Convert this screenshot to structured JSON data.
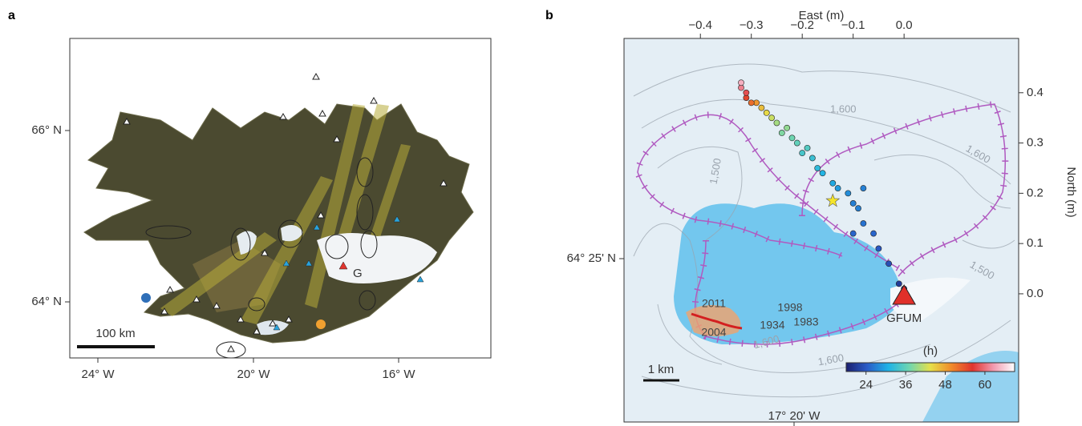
{
  "panel_a": {
    "label": "a",
    "x_labels": [
      "24° W",
      "20° W",
      "16° W"
    ],
    "y_labels": [
      "66° N",
      "64° N"
    ],
    "scale_bar": "100 km",
    "site_label": "G"
  },
  "chart_data": {
    "type": "scatter",
    "label": "b",
    "xlabel": "East (m)",
    "ylabel": "North (m)",
    "lat_label": "64° 25' N",
    "lon_label": "17° 20' W",
    "xlim": [
      -0.55,
      0.225
    ],
    "ylim": [
      -0.255,
      0.508
    ],
    "xticks": [
      {
        "value": -0.4,
        "label": "−0.4"
      },
      {
        "value": -0.3,
        "label": "−0.3"
      },
      {
        "value": -0.2,
        "label": "−0.2"
      },
      {
        "value": -0.1,
        "label": "−0.1"
      },
      {
        "value": 0,
        "label": "0.0"
      }
    ],
    "yticks": [
      {
        "value": 0,
        "label": "0.0"
      },
      0.1,
      0.2,
      0.3,
      0.4
    ],
    "x": [
      0.0,
      -0.01,
      0.0,
      -0.03,
      -0.05,
      -0.06,
      -0.08,
      -0.09,
      -0.1,
      -0.11,
      -0.13,
      -0.14,
      -0.16,
      -0.17,
      -0.18,
      -0.2,
      -0.19,
      -0.21,
      -0.22,
      -0.24,
      -0.23,
      -0.25,
      -0.26,
      -0.27,
      -0.28,
      -0.29,
      -0.3,
      -0.31,
      -0.31,
      -0.32,
      -0.32,
      -0.08,
      -0.1
    ],
    "y": [
      0.01,
      0.02,
      0.0,
      0.06,
      0.09,
      0.12,
      0.14,
      0.17,
      0.18,
      0.2,
      0.21,
      0.22,
      0.24,
      0.25,
      0.27,
      0.28,
      0.29,
      0.3,
      0.31,
      0.32,
      0.33,
      0.34,
      0.35,
      0.36,
      0.37,
      0.38,
      0.38,
      0.39,
      0.4,
      0.41,
      0.42,
      0.21,
      0.12
    ],
    "values": [
      20,
      21,
      20,
      23,
      24,
      25,
      26,
      27,
      27,
      28,
      29,
      30,
      31,
      32,
      33,
      34,
      35,
      36,
      37,
      38,
      39,
      40,
      42,
      44,
      46,
      49,
      52,
      55,
      58,
      61,
      64,
      27,
      25
    ],
    "colormap": [
      "#1b1f6e",
      "#2a5cc8",
      "#1fb3e6",
      "#6fd6b0",
      "#e6e04a",
      "#f08a2a",
      "#e0342e",
      "#f29ab0",
      "#ffffff"
    ],
    "clim": [
      18,
      69
    ],
    "cticks": [
      24,
      36,
      48,
      60
    ],
    "colorbar_label": "(h)",
    "star": {
      "x": -0.14,
      "y": 0.185
    },
    "station": {
      "name": "GFUM",
      "x": 0,
      "y": -0.005
    },
    "contour_labels": [
      "1,600",
      "1,500",
      "1,600",
      "1,500",
      "1,600",
      "1,600"
    ],
    "years": [
      "2011",
      "2004",
      "1998",
      "1934",
      "1983"
    ],
    "scale_bar": "1 km"
  }
}
